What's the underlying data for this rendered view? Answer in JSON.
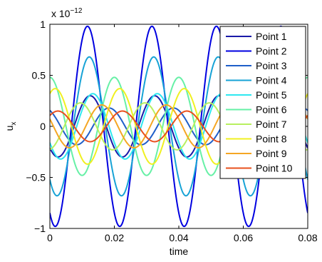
{
  "chart_data": {
    "type": "line",
    "title": "",
    "xlabel": "time",
    "ylabel": "u",
    "ylabel_subscript": "x",
    "exponent_label": {
      "base": "x 10",
      "power": "−12"
    },
    "xlim": [
      0,
      0.08
    ],
    "ylim": [
      -1,
      1
    ],
    "xticks": [
      0,
      0.02,
      0.04,
      0.06,
      0.08
    ],
    "xtick_labels": [
      "0",
      "0.02",
      "0.04",
      "0.06",
      "0.08"
    ],
    "yticks": [
      -1,
      -0.5,
      0,
      0.5,
      1
    ],
    "ytick_labels": [
      "−1",
      "−0.5",
      "0",
      "0.5",
      "1"
    ],
    "grid": false,
    "legend_position": "top-right",
    "frequency_hz": 50,
    "series": [
      {
        "name": "Point 1",
        "color": "#1a1aa8",
        "amplitude": 0.3,
        "phase_deg": -135
      },
      {
        "name": "Point 2",
        "color": "#0000e0",
        "amplitude": 0.98,
        "phase_deg": -120
      },
      {
        "name": "Point 3",
        "color": "#1f5fc9",
        "amplitude": 0.18,
        "phase_deg": -240
      },
      {
        "name": "Point 4",
        "color": "#17a3d6",
        "amplitude": 0.68,
        "phase_deg": -130
      },
      {
        "name": "Point 5",
        "color": "#2ee8f0",
        "amplitude": 0.32,
        "phase_deg": -150
      },
      {
        "name": "Point 6",
        "color": "#66f0a6",
        "amplitude": 0.48,
        "phase_deg": -270
      },
      {
        "name": "Point 7",
        "color": "#b8f060",
        "amplitude": 0.23,
        "phase_deg": -80
      },
      {
        "name": "Point 8",
        "color": "#f0f020",
        "amplitude": 0.37,
        "phase_deg": -300
      },
      {
        "name": "Point 9",
        "color": "#f5a623",
        "amplitude": 0.21,
        "phase_deg": -200
      },
      {
        "name": "Point 10",
        "color": "#e8501e",
        "amplitude": 0.15,
        "phase_deg": -315
      }
    ]
  }
}
